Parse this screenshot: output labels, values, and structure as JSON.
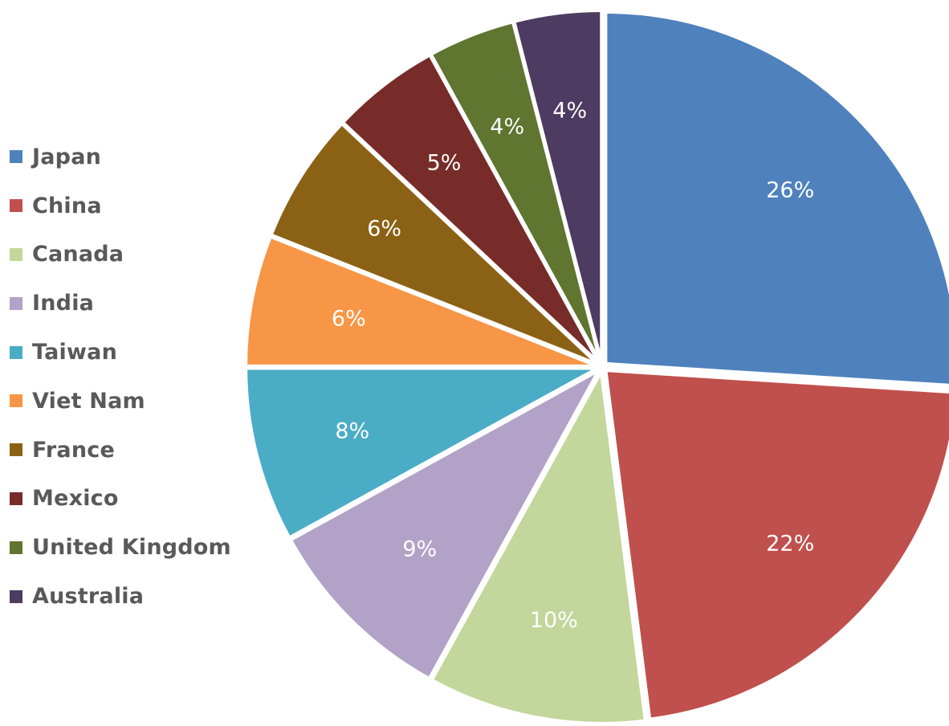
{
  "chart_data": {
    "type": "pie",
    "title": "",
    "categories": [
      "Japan",
      "China",
      "Canada",
      "India",
      "Taiwan",
      "Viet Nam",
      "France",
      "Mexico",
      "United Kingdom",
      "Australia"
    ],
    "values": [
      26,
      22,
      10,
      9,
      8,
      6,
      6,
      5,
      4,
      4
    ],
    "value_labels": [
      "26%",
      "22%",
      "10%",
      "9%",
      "8%",
      "6%",
      "6%",
      "5%",
      "4%",
      "4%"
    ],
    "value_unit": "%",
    "colors": [
      "#4f81bd",
      "#c0504d",
      "#c3d69b",
      "#b2a2c7",
      "#4bacc6",
      "#f79646",
      "#8b6215",
      "#772c2a",
      "#5f7530",
      "#4d3b62"
    ],
    "legend_position": "left",
    "start_angle": "12 o'clock, clockwise",
    "exploded": true
  }
}
